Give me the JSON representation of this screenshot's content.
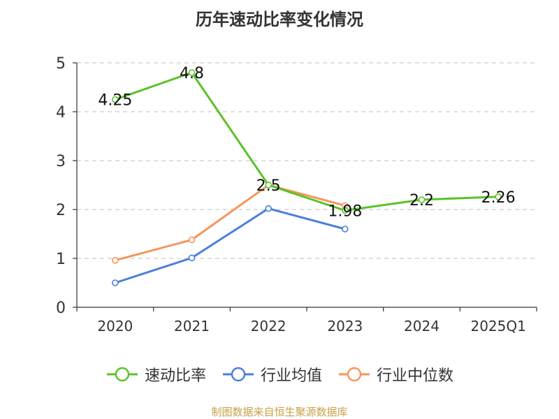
{
  "title": "历年速动比率变化情况",
  "source": "制图数据来自恒生聚源数据库",
  "colors": {
    "series": [
      "#5ac229",
      "#4a7fdc",
      "#f7945a"
    ],
    "grid": "#cccccc",
    "axis": "#333333",
    "text": "#333333",
    "source": "#c8a048"
  },
  "chart_data": {
    "type": "line",
    "title": "历年速动比率变化情况",
    "categories": [
      "2020",
      "2021",
      "2022",
      "2023",
      "2024",
      "2025Q1"
    ],
    "ylim": [
      0,
      5
    ],
    "yticks": [
      "0",
      "1",
      "2",
      "3",
      "4",
      "5"
    ],
    "grid": true,
    "grid_style": "dashed",
    "legend_position": "bottom",
    "series": [
      {
        "name": "速动比率",
        "values": [
          4.25,
          4.8,
          2.5,
          1.98,
          2.2,
          2.26
        ],
        "labels": [
          "4.25",
          "4.8",
          "2.5",
          "1.98",
          "2.2",
          "2.26"
        ]
      },
      {
        "name": "行业均值",
        "values": [
          0.5,
          1.01,
          2.02,
          1.6,
          null,
          null
        ]
      },
      {
        "name": "行业中位数",
        "values": [
          0.96,
          1.38,
          2.5,
          2.08,
          null,
          null
        ]
      }
    ]
  }
}
